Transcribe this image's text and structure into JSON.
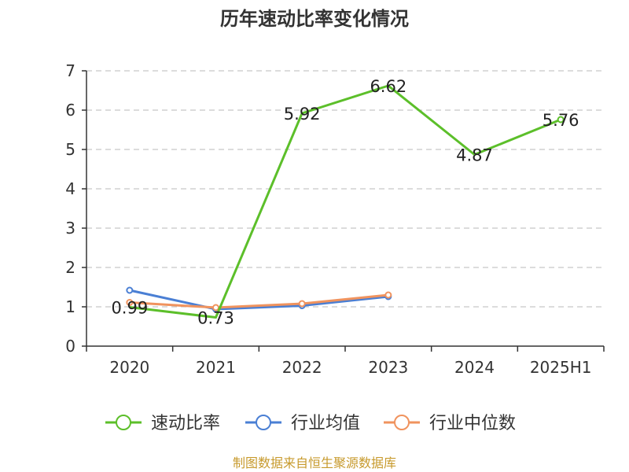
{
  "chart_data": {
    "type": "line",
    "title": "历年速动比率变化情况",
    "categories": [
      "2020",
      "2021",
      "2022",
      "2023",
      "2024",
      "2025H1"
    ],
    "yticks": [
      "0",
      "1",
      "2",
      "3",
      "4",
      "5",
      "6",
      "7"
    ],
    "ylim": [
      0,
      7
    ],
    "grid": true,
    "legend_position": "bottom",
    "series": [
      {
        "name": "速动比率",
        "color": "#5cbf2a",
        "values": [
          0.99,
          0.73,
          5.92,
          6.62,
          4.87,
          5.76
        ],
        "labels": [
          "0.99",
          "0.73",
          "5.92",
          "6.62",
          "4.87",
          "5.76"
        ]
      },
      {
        "name": "行业均值",
        "color": "#4a7fd4",
        "values": [
          1.42,
          0.94,
          1.03,
          1.26,
          null,
          null
        ]
      },
      {
        "name": "行业中位数",
        "color": "#f0935e",
        "values": [
          1.11,
          0.98,
          1.08,
          1.3,
          null,
          null
        ]
      }
    ],
    "source": "制图数据来自恒生聚源数据库"
  }
}
